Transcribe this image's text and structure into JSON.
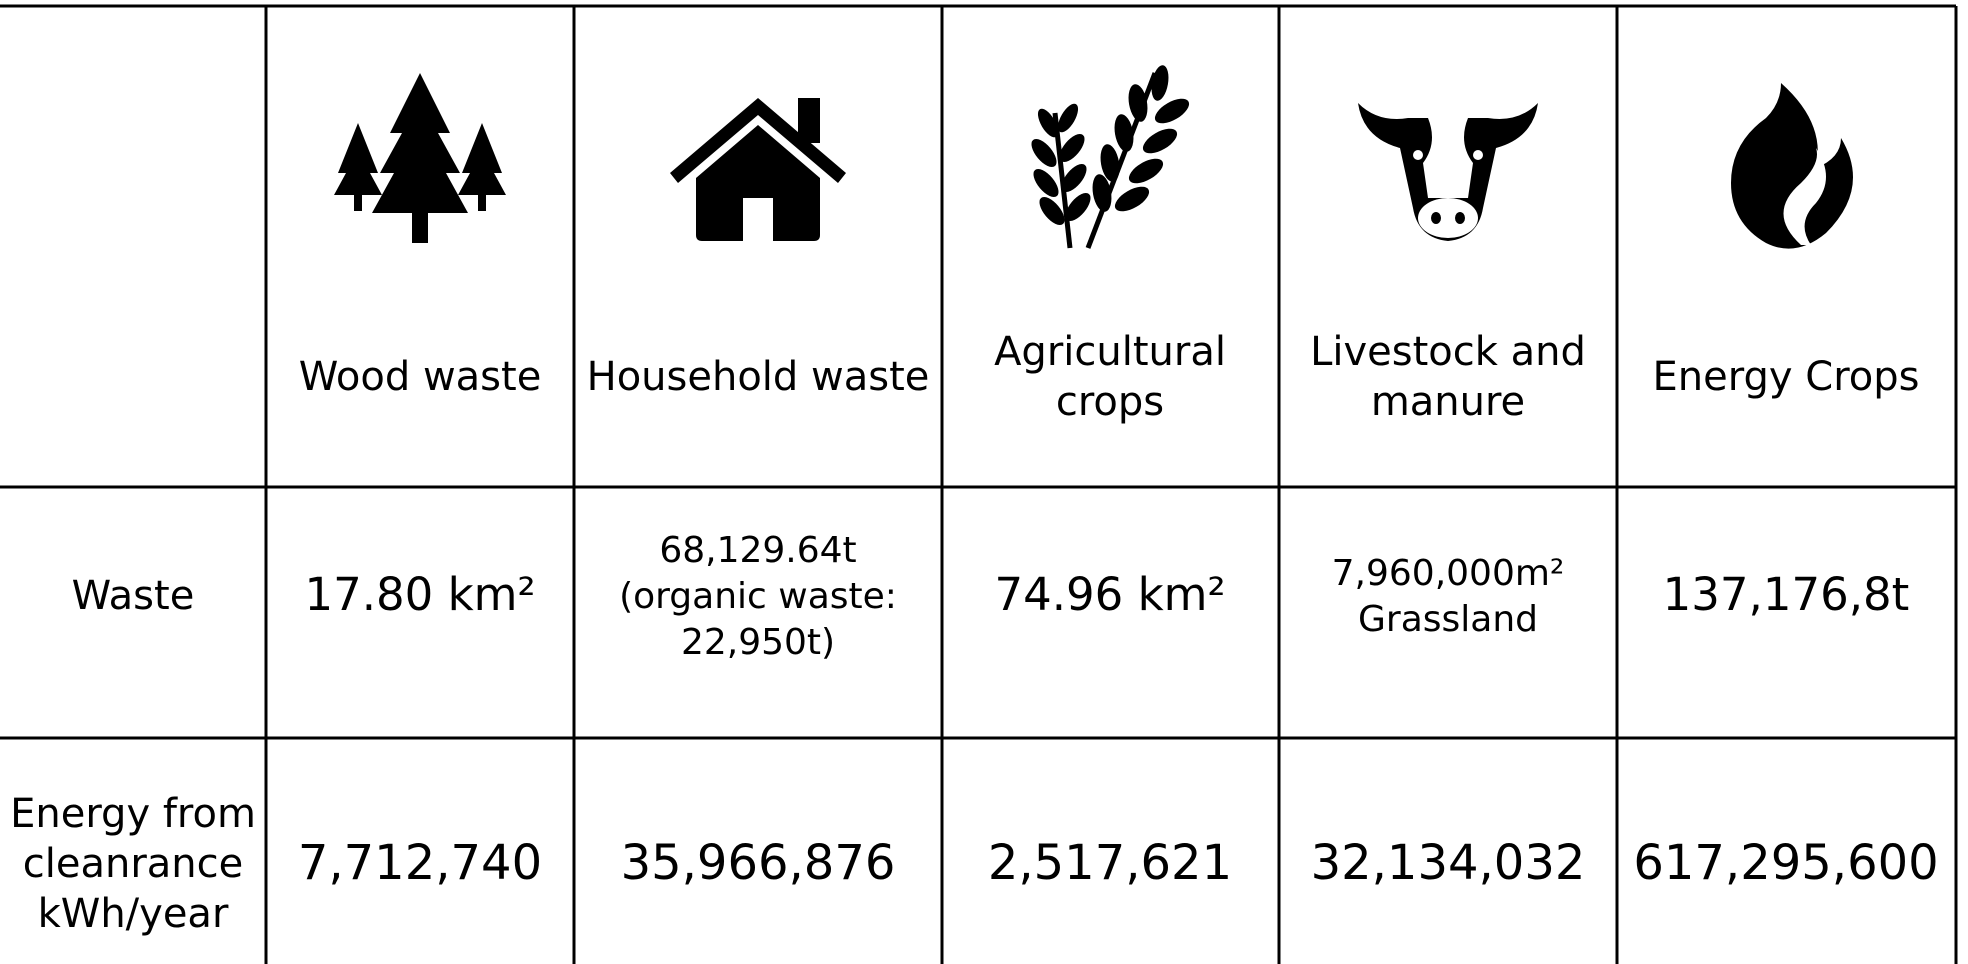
{
  "table": {
    "header": [
      [
        "Wood waste"
      ],
      [
        "Household waste"
      ],
      [
        "Agricultural",
        "crops"
      ],
      [
        "Livestock and",
        "manure"
      ],
      [
        "Energy Crops"
      ]
    ],
    "rows": [
      {
        "label": [
          "Waste"
        ],
        "cells": [
          [
            "17.80 km²"
          ],
          [
            "68,129.64t",
            "(organic waste:",
            "22,950t)"
          ],
          [
            "74.96 km²"
          ],
          [
            "7,960,000m²",
            "Grassland"
          ],
          [
            "137,176,8t"
          ]
        ]
      },
      {
        "label": [
          "Energy from",
          "cleanrance",
          "kWh/year"
        ],
        "cells": [
          [
            "7,712,740"
          ],
          [
            "35,966,876"
          ],
          [
            "2,517,621"
          ],
          [
            "32,134,032"
          ],
          [
            "617,295,600"
          ]
        ]
      }
    ]
  }
}
